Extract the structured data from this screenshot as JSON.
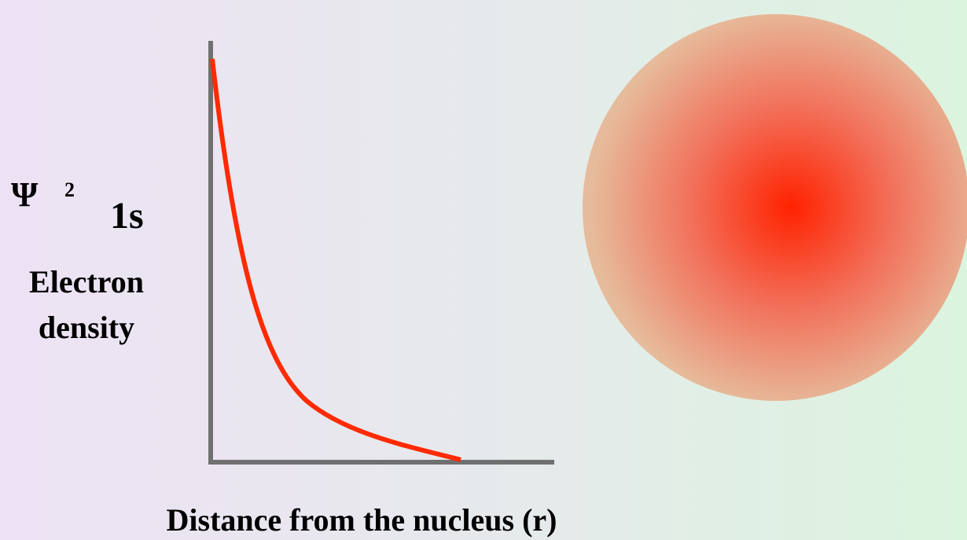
{
  "y_axis": {
    "symbol": "Ψ",
    "exponent": "2",
    "orbital": "1s",
    "label_lines": [
      "Electron",
      "density"
    ]
  },
  "x_axis": {
    "label": "Distance from the nucleus (r)"
  }
}
